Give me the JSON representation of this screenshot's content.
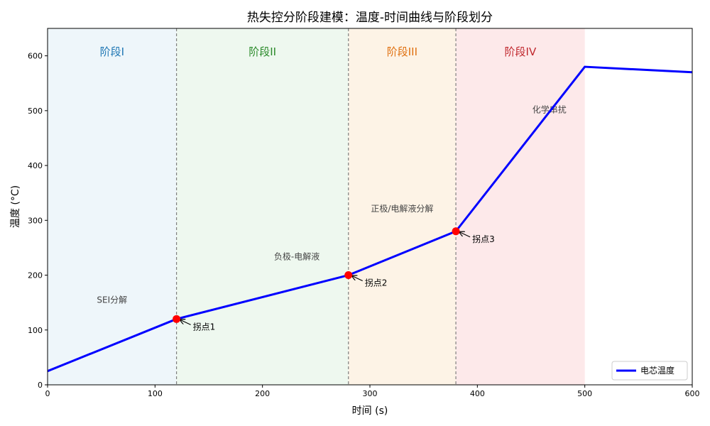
{
  "chart_data": {
    "type": "line",
    "title": "热失控分阶段建模：温度-时间曲线与阶段划分",
    "xlabel": "时间 (s)",
    "ylabel": "温度 (°C)",
    "xlim": [
      0,
      600
    ],
    "ylim": [
      0,
      650
    ],
    "xticks": [
      0,
      100,
      200,
      300,
      400,
      500,
      600
    ],
    "yticks": [
      0,
      100,
      200,
      300,
      400,
      500,
      600
    ],
    "grid": false,
    "legend_position": "lower-right",
    "series": [
      {
        "name": "电芯温度",
        "color": "#0000ff",
        "x": [
          0,
          120,
          280,
          380,
          500,
          600
        ],
        "y": [
          25,
          120,
          200,
          280,
          580,
          570
        ]
      }
    ],
    "stages": [
      {
        "label": "阶段I",
        "x_start": 0,
        "x_end": 120,
        "fill": "#eef6fa",
        "text_color": "#1f77b4",
        "note": "SEI分解",
        "note_x": 60,
        "note_y": 155,
        "note_color": "#444444"
      },
      {
        "label": "阶段II",
        "x_start": 120,
        "x_end": 280,
        "fill": "#eef8ef",
        "text_color": "#2a8a2a",
        "note": "负极-电解液",
        "note_x": 232,
        "note_y": 234,
        "note_color": "#444444"
      },
      {
        "label": "阶段III",
        "x_start": 280,
        "x_end": 380,
        "fill": "#fdf3e6",
        "text_color": "#e07010",
        "note": "正极/电解液分解",
        "note_x": 330,
        "note_y": 321,
        "note_color": "#444444"
      },
      {
        "label": "阶段IV",
        "x_start": 380,
        "x_end": 500,
        "fill": "#fde9ea",
        "text_color": "#c0282e",
        "note": "化学串扰",
        "note_x": 467,
        "note_y": 502,
        "note_color": "#ff0000"
      }
    ],
    "inflection_points": [
      {
        "label": "拐点1",
        "x": 120,
        "y": 120
      },
      {
        "label": "拐点2",
        "x": 280,
        "y": 200
      },
      {
        "label": "拐点3",
        "x": 380,
        "y": 280
      }
    ],
    "boundaries": [
      120,
      280,
      380
    ]
  }
}
